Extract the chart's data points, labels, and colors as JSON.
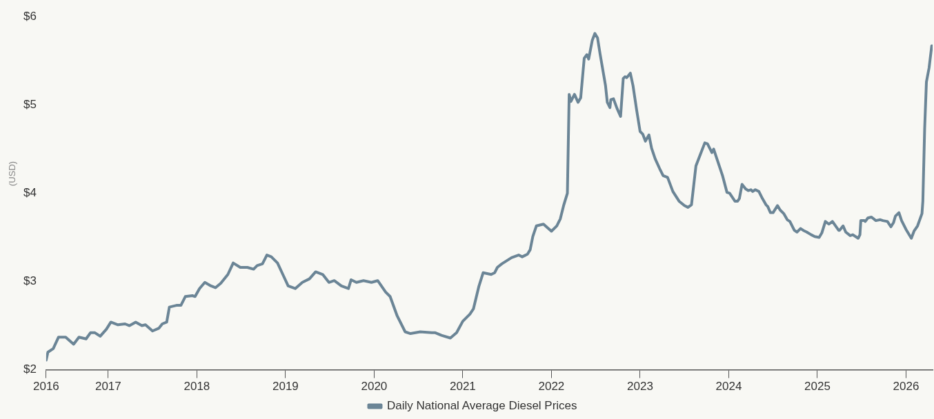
{
  "chart_data": {
    "type": "line",
    "ylabel": "(USD)",
    "xlim": [
      2016.3,
      2026.3
    ],
    "xticks": [
      {
        "value": 2016.3,
        "label": "2016"
      },
      2017,
      2018,
      2019,
      2020,
      2021,
      2022,
      2023,
      2024,
      2025,
      2026
    ],
    "ylim": [
      2,
      6
    ],
    "yticks": [
      {
        "value": 2,
        "label": "$2"
      },
      {
        "value": 3,
        "label": "$3"
      },
      {
        "value": 4,
        "label": "$4"
      },
      {
        "value": 5,
        "label": "$5"
      },
      {
        "value": 6,
        "label": "$6"
      }
    ],
    "grid": false,
    "legend": "bottom",
    "marker": "none",
    "line_style": "solid",
    "series": [
      {
        "name": "Daily National Average Diesel Prices",
        "color": "#6b8596",
        "x": [
          2016.3,
          2016.32,
          2016.38,
          2016.44,
          2016.52,
          2016.61,
          2016.67,
          2016.75,
          2016.8,
          2016.85,
          2016.91,
          2016.98,
          2017.03,
          2017.11,
          2017.19,
          2017.24,
          2017.31,
          2017.38,
          2017.42,
          2017.5,
          2017.57,
          2017.61,
          2017.66,
          2017.69,
          2017.77,
          2017.82,
          2017.87,
          2017.95,
          2017.98,
          2018.03,
          2018.09,
          2018.16,
          2018.21,
          2018.27,
          2018.35,
          2018.41,
          2018.49,
          2018.57,
          2018.64,
          2018.68,
          2018.74,
          2018.79,
          2018.84,
          2018.91,
          2018.97,
          2019.03,
          2019.11,
          2019.19,
          2019.27,
          2019.34,
          2019.42,
          2019.49,
          2019.55,
          2019.63,
          2019.71,
          2019.74,
          2019.8,
          2019.88,
          2019.97,
          2020.04,
          2020.13,
          2020.18,
          2020.26,
          2020.35,
          2020.41,
          2020.52,
          2020.65,
          2020.69,
          2020.76,
          2020.86,
          2020.93,
          2021.0,
          2021.08,
          2021.12,
          2021.18,
          2021.23,
          2021.32,
          2021.36,
          2021.39,
          2021.44,
          2021.55,
          2021.63,
          2021.67,
          2021.73,
          2021.76,
          2021.79,
          2021.83,
          2021.91,
          2022.0,
          2022.06,
          2022.1,
          2022.14,
          2022.18,
          2022.2,
          2022.22,
          2022.26,
          2022.3,
          2022.33,
          2022.37,
          2022.4,
          2022.42,
          2022.46,
          2022.49,
          2022.52,
          2022.55,
          2022.61,
          2022.63,
          2022.66,
          2022.67,
          2022.7,
          2022.74,
          2022.78,
          2022.81,
          2022.83,
          2022.85,
          2022.89,
          2022.92,
          2022.96,
          2023.0,
          2023.03,
          2023.06,
          2023.1,
          2023.13,
          2023.17,
          2023.22,
          2023.26,
          2023.31,
          2023.37,
          2023.44,
          2023.5,
          2023.54,
          2023.58,
          2023.63,
          2023.68,
          2023.73,
          2023.76,
          2023.81,
          2023.83,
          2023.88,
          2023.93,
          2023.98,
          2024.01,
          2024.07,
          2024.1,
          2024.12,
          2024.15,
          2024.19,
          2024.22,
          2024.25,
          2024.27,
          2024.3,
          2024.34,
          2024.38,
          2024.42,
          2024.44,
          2024.47,
          2024.5,
          2024.55,
          2024.58,
          2024.62,
          2024.66,
          2024.69,
          2024.74,
          2024.77,
          2024.81,
          2024.84,
          2024.88,
          2024.93,
          2024.97,
          2025.02,
          2025.05,
          2025.09,
          2025.13,
          2025.17,
          2025.24,
          2025.25,
          2025.29,
          2025.32,
          2025.37,
          2025.4,
          2025.46,
          2025.48,
          2025.49,
          2025.53,
          2025.54,
          2025.57,
          2025.61,
          2025.66,
          2025.71,
          2025.74,
          2025.79,
          2025.83,
          2025.86,
          2025.88,
          2025.92,
          2025.95,
          2026.0,
          2026.06,
          2026.09,
          2026.13,
          2026.18,
          2026.19,
          2026.21,
          2026.23,
          2026.26,
          2026.29
        ],
        "values": [
          2.11,
          2.2,
          2.24,
          2.37,
          2.37,
          2.29,
          2.37,
          2.35,
          2.42,
          2.42,
          2.38,
          2.46,
          2.54,
          2.51,
          2.52,
          2.5,
          2.54,
          2.5,
          2.51,
          2.44,
          2.47,
          2.52,
          2.54,
          2.71,
          2.73,
          2.73,
          2.83,
          2.84,
          2.83,
          2.92,
          2.99,
          2.95,
          2.93,
          2.98,
          3.08,
          3.21,
          3.16,
          3.16,
          3.14,
          3.18,
          3.2,
          3.3,
          3.28,
          3.21,
          3.08,
          2.95,
          2.92,
          2.99,
          3.03,
          3.11,
          3.08,
          2.99,
          3.01,
          2.95,
          2.92,
          3.02,
          2.99,
          3.01,
          2.99,
          3.01,
          2.88,
          2.83,
          2.61,
          2.43,
          2.41,
          2.43,
          2.42,
          2.42,
          2.39,
          2.36,
          2.42,
          2.55,
          2.63,
          2.69,
          2.94,
          3.1,
          3.08,
          3.1,
          3.16,
          3.2,
          3.27,
          3.3,
          3.28,
          3.31,
          3.36,
          3.51,
          3.63,
          3.65,
          3.57,
          3.63,
          3.71,
          3.87,
          4.0,
          5.12,
          5.04,
          5.12,
          5.03,
          5.08,
          5.53,
          5.57,
          5.52,
          5.73,
          5.81,
          5.76,
          5.57,
          5.22,
          5.03,
          4.97,
          5.06,
          5.07,
          4.96,
          4.87,
          5.3,
          5.32,
          5.31,
          5.36,
          5.22,
          4.95,
          4.7,
          4.67,
          4.59,
          4.66,
          4.51,
          4.39,
          4.28,
          4.2,
          4.18,
          4.02,
          3.91,
          3.86,
          3.84,
          3.87,
          4.31,
          4.44,
          4.57,
          4.56,
          4.46,
          4.5,
          4.35,
          4.2,
          4.01,
          4.0,
          3.91,
          3.91,
          3.94,
          4.1,
          4.05,
          4.03,
          4.04,
          4.02,
          4.04,
          4.02,
          3.94,
          3.87,
          3.85,
          3.78,
          3.78,
          3.86,
          3.81,
          3.77,
          3.7,
          3.68,
          3.58,
          3.56,
          3.6,
          3.58,
          3.56,
          3.53,
          3.51,
          3.5,
          3.55,
          3.68,
          3.65,
          3.68,
          3.58,
          3.58,
          3.63,
          3.56,
          3.52,
          3.53,
          3.49,
          3.53,
          3.69,
          3.69,
          3.68,
          3.72,
          3.73,
          3.69,
          3.7,
          3.69,
          3.68,
          3.62,
          3.67,
          3.74,
          3.78,
          3.69,
          3.59,
          3.49,
          3.57,
          3.63,
          3.77,
          3.91,
          4.73,
          5.26,
          5.42,
          5.67
        ]
      }
    ]
  }
}
